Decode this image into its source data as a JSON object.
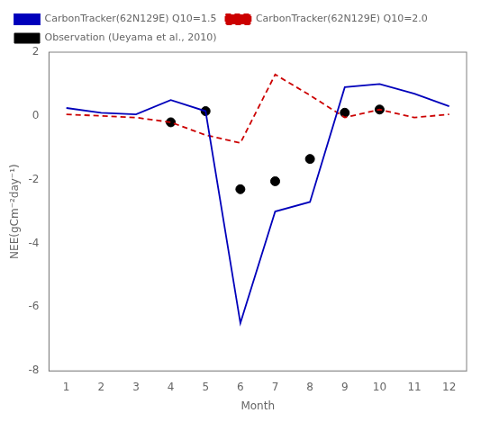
{
  "chart_data": {
    "type": "line",
    "x": [
      1,
      2,
      3,
      4,
      5,
      6,
      7,
      8,
      9,
      10,
      11,
      12
    ],
    "series": [
      {
        "name": "CarbonTracker(62N129E) Q10=1.5",
        "color": "#0000BB",
        "line_style": "solid",
        "values": [
          0.25,
          0.1,
          0.05,
          0.5,
          0.15,
          -6.5,
          -3.0,
          -2.7,
          0.9,
          1.0,
          0.7,
          0.3
        ]
      },
      {
        "name": "CarbonTracker(62N129E) Q10=2.0",
        "color": "#CC0000",
        "line_style": "dashed",
        "values": [
          0.05,
          0.0,
          -0.05,
          -0.2,
          -0.6,
          -0.85,
          1.3,
          0.65,
          -0.05,
          0.2,
          -0.05,
          0.05
        ]
      },
      {
        "name": "Observation (Ueyama et al., 2010)",
        "color": "#000000",
        "type": "scatter",
        "marker": "circle",
        "x": [
          4,
          5,
          6,
          7,
          8,
          9,
          10
        ],
        "values": [
          -0.2,
          0.15,
          -2.3,
          -2.05,
          -1.35,
          0.1,
          0.2
        ]
      }
    ],
    "xlabel": "Month",
    "ylabel": "NEE(gCm⁻²day⁻¹)",
    "xlim": [
      0.5,
      12.5
    ],
    "xticks": [
      1,
      2,
      3,
      4,
      5,
      6,
      7,
      8,
      9,
      10,
      11,
      12
    ],
    "ylim": [
      -8,
      2
    ],
    "yticks": [
      -8,
      -6,
      -4,
      -2,
      0,
      2
    ],
    "grid": false,
    "legend": "upper left"
  }
}
